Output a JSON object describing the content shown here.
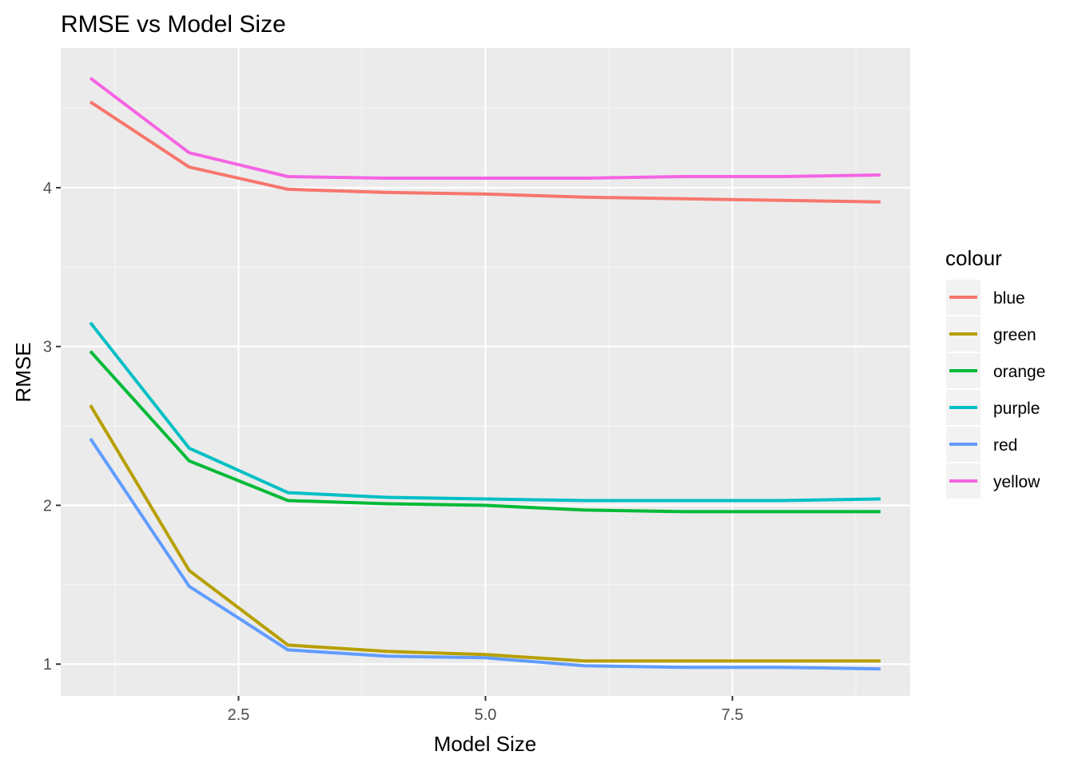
{
  "chart_data": {
    "type": "line",
    "title": "RMSE vs Model Size",
    "xlabel": "Model Size",
    "ylabel": "RMSE",
    "xlim": [
      0.7,
      9.3
    ],
    "ylim": [
      0.8,
      4.88
    ],
    "x_ticks_major": [
      2.5,
      5.0,
      7.5
    ],
    "x_ticks_labels": [
      "2.5",
      "5.0",
      "7.5"
    ],
    "x_ticks_minor": [
      1.25,
      3.75,
      6.25,
      8.75
    ],
    "y_ticks_major": [
      1,
      2,
      3,
      4
    ],
    "y_ticks_labels": [
      "1",
      "2",
      "3",
      "4"
    ],
    "y_ticks_minor": [
      1.5,
      2.5,
      3.5,
      4.5
    ],
    "grid": true,
    "legend": {
      "title": "colour",
      "placement": "right"
    },
    "x": [
      1,
      2,
      3,
      4,
      5,
      6,
      7,
      8,
      9
    ],
    "series": [
      {
        "name": "blue",
        "color": "#F8766D",
        "values": [
          4.54,
          4.13,
          3.99,
          3.97,
          3.96,
          3.94,
          3.93,
          3.92,
          3.91
        ]
      },
      {
        "name": "green",
        "color": "#B79F00",
        "values": [
          2.63,
          1.59,
          1.12,
          1.08,
          1.06,
          1.02,
          1.02,
          1.02,
          1.02
        ]
      },
      {
        "name": "orange",
        "color": "#00BA38",
        "values": [
          2.97,
          2.28,
          2.03,
          2.01,
          2.0,
          1.97,
          1.96,
          1.96,
          1.96
        ]
      },
      {
        "name": "purple",
        "color": "#00BFC4",
        "values": [
          3.15,
          2.36,
          2.08,
          2.05,
          2.04,
          2.03,
          2.03,
          2.03,
          2.04
        ]
      },
      {
        "name": "red",
        "color": "#619CFF",
        "values": [
          2.42,
          1.49,
          1.09,
          1.05,
          1.04,
          0.99,
          0.98,
          0.98,
          0.97
        ]
      },
      {
        "name": "yellow",
        "color": "#F564E3",
        "values": [
          4.69,
          4.22,
          4.07,
          4.06,
          4.06,
          4.06,
          4.07,
          4.07,
          4.08
        ]
      }
    ]
  }
}
